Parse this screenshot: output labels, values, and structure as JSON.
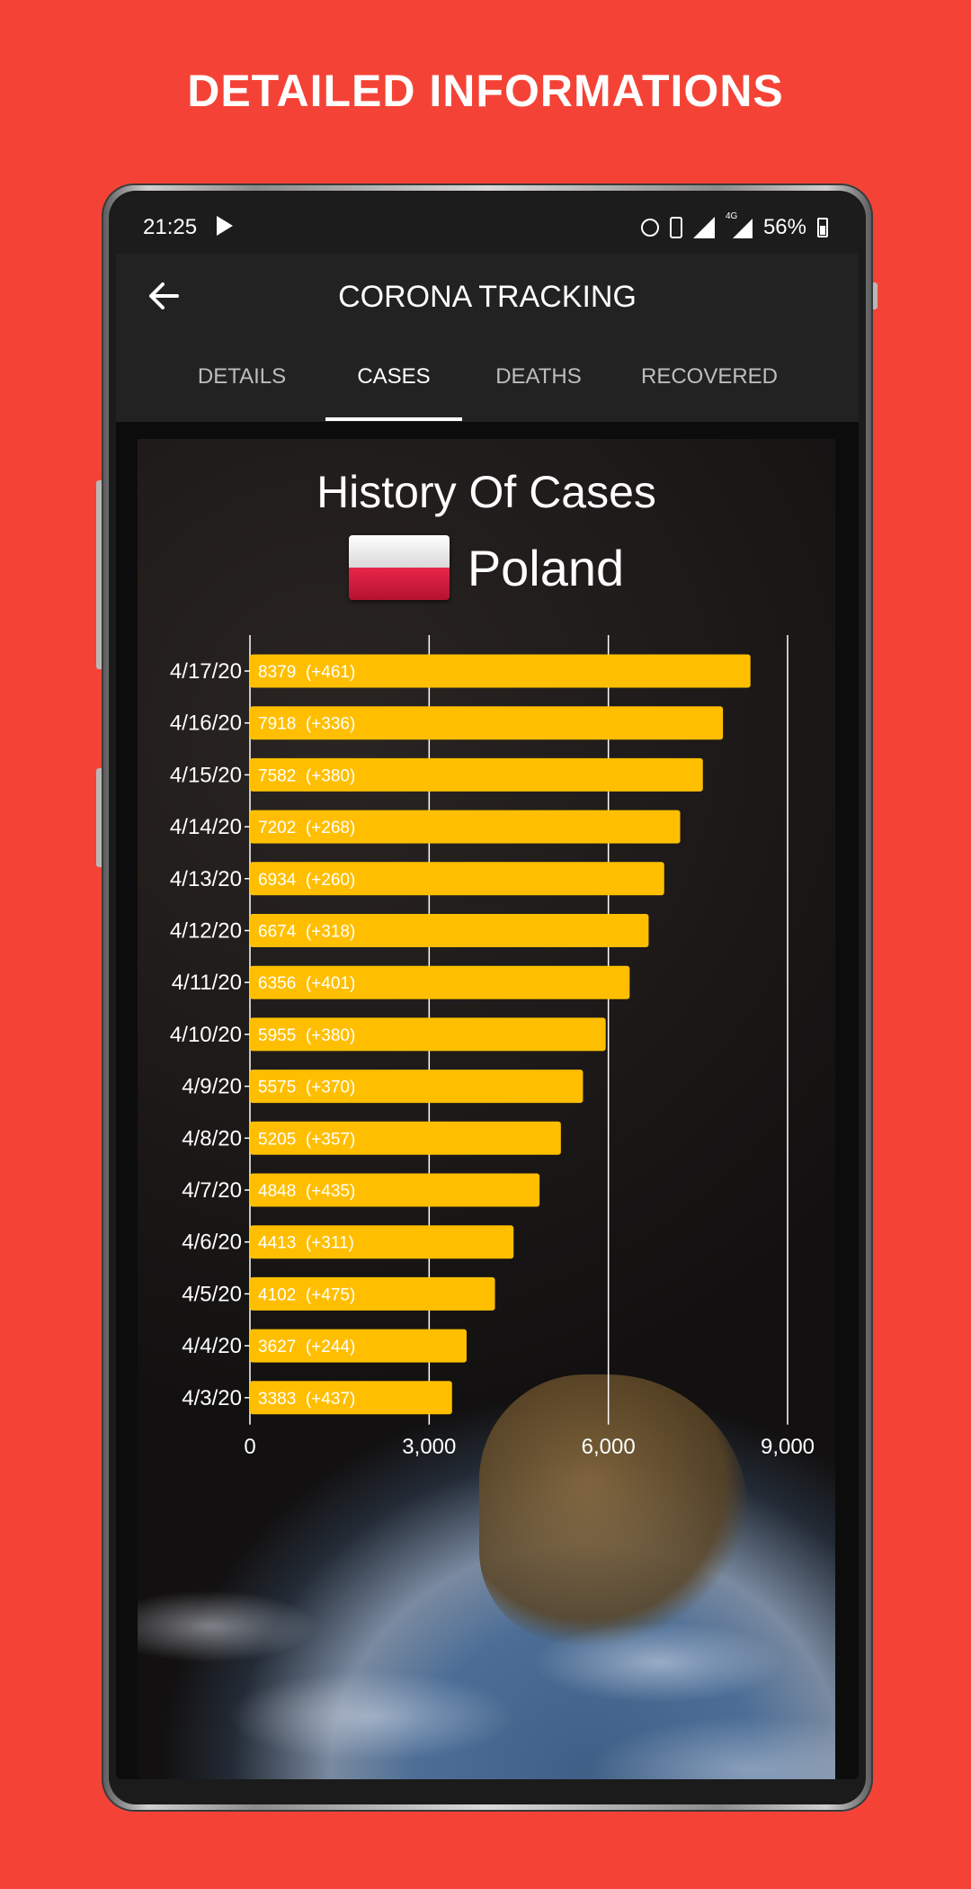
{
  "promo": {
    "title": "DETAILED INFORMATIONS"
  },
  "status_bar": {
    "time": "21:25",
    "battery": "56%",
    "network_label": "4G"
  },
  "app_bar": {
    "title": "CORONA TRACKING",
    "back_icon": "arrow-left-icon"
  },
  "tabs": [
    {
      "label": "DETAILS",
      "active": false
    },
    {
      "label": "CASES",
      "active": true
    },
    {
      "label": "DEATHS",
      "active": false
    },
    {
      "label": "RECOVERED",
      "active": false
    }
  ],
  "content": {
    "title": "History Of Cases",
    "country": "Poland",
    "flag_icon": "poland-flag-icon"
  },
  "chart_data": {
    "type": "bar",
    "orientation": "horizontal",
    "categories": [
      "4/17/20",
      "4/16/20",
      "4/15/20",
      "4/14/20",
      "4/13/20",
      "4/12/20",
      "4/11/20",
      "4/10/20",
      "4/9/20",
      "4/8/20",
      "4/7/20",
      "4/6/20",
      "4/5/20",
      "4/4/20",
      "4/3/20"
    ],
    "values": [
      8379,
      7918,
      7582,
      7202,
      6934,
      6674,
      6356,
      5955,
      5575,
      5205,
      4848,
      4413,
      4102,
      3627,
      3383
    ],
    "data_labels": [
      "8379  (+461)",
      "7918  (+336)",
      "7582  (+380)",
      "7202  (+268)",
      "6934  (+260)",
      "6674  (+318)",
      "6356  (+401)",
      "5955  (+380)",
      "5575  (+370)",
      "5205  (+357)",
      "4848  (+435)",
      "4413  (+311)",
      "4102  (+475)",
      "3627  (+244)",
      "3383  (+437)"
    ],
    "x_ticks": [
      0,
      3000,
      6000,
      9000
    ],
    "x_tick_labels": [
      "0",
      "3,000",
      "6,000",
      "9,000"
    ],
    "xlim": [
      0,
      9000
    ],
    "grid": "vertical",
    "bar_color": "#ffbf00"
  }
}
